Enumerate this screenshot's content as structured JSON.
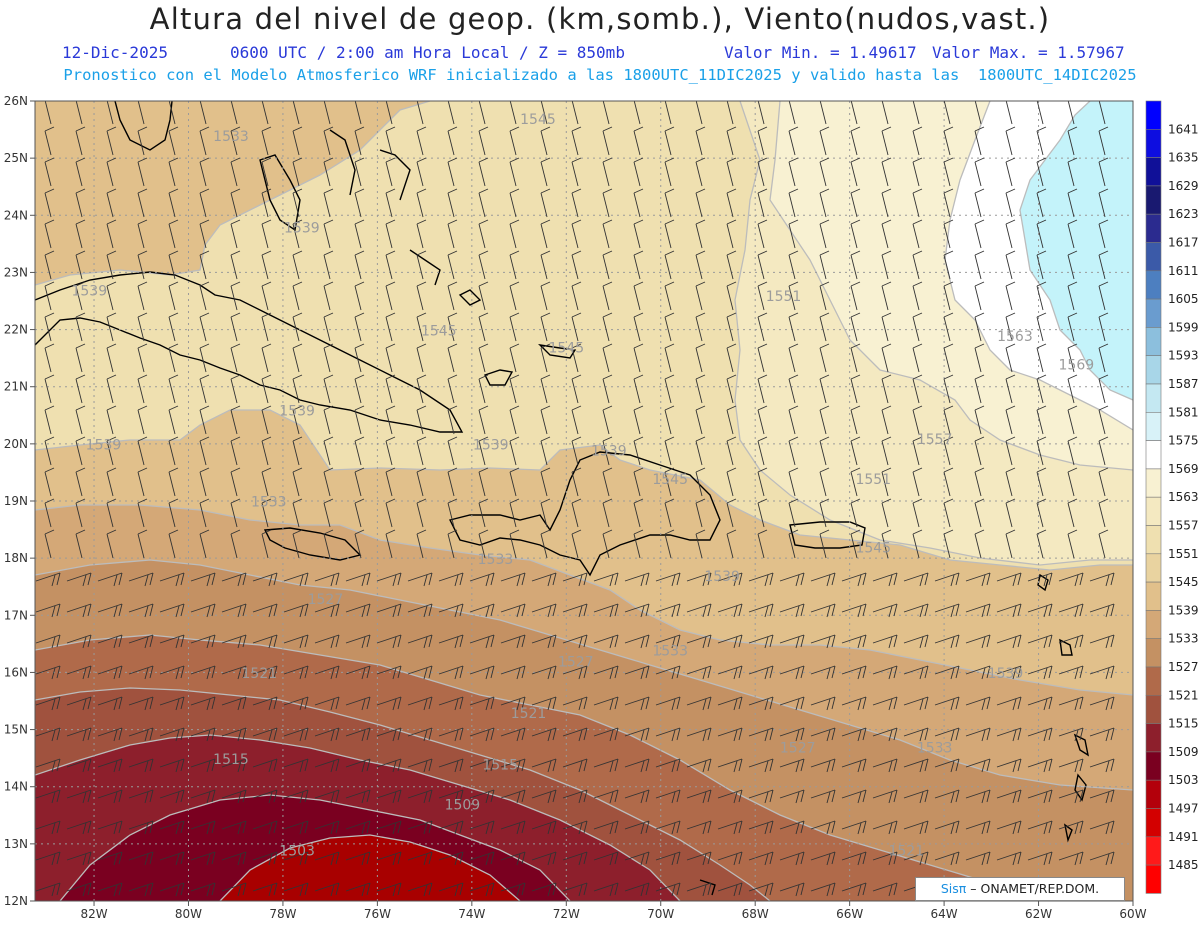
{
  "title": "Altura del nivel de geop. (km,somb.), Viento(nudos,vast.)",
  "subtitle": {
    "date": "12-Dic-2025",
    "time": "0600 UTC / 2:00 am Hora Local / Z = 850mb",
    "min": "Valor Min. = 1.49617",
    "max": "Valor Max. = 1.57967"
  },
  "description": "Pronostico con el Modelo Atmosferico WRF inicializado a las 1800UTC_11DIC2025 y valido hasta las  1800UTC_14DIC2025",
  "credit": {
    "brand": "Sisπ",
    "text": "– ONAMET/REP.DOM."
  },
  "map": {
    "lon_ticks": [
      "82W",
      "80W",
      "78W",
      "76W",
      "74W",
      "72W",
      "70W",
      "68W",
      "66W",
      "64W",
      "62W",
      "60W"
    ],
    "lat_ticks": [
      "26N",
      "25N",
      "24N",
      "23N",
      "22N",
      "21N",
      "20N",
      "19N",
      "18N",
      "17N",
      "16N",
      "15N",
      "14N",
      "13N",
      "12N"
    ],
    "lon_range": [
      -83.25,
      -60
    ],
    "lat_range": [
      12,
      26
    ]
  },
  "contour_labels": [
    {
      "text": "1545",
      "lon": -72.6,
      "lat": 25.6
    },
    {
      "text": "1533",
      "lon": -79.1,
      "lat": 25.3
    },
    {
      "text": "1539",
      "lon": -77.6,
      "lat": 23.7
    },
    {
      "text": "1539",
      "lon": -82.1,
      "lat": 22.6
    },
    {
      "text": "1545",
      "lon": -74.7,
      "lat": 21.9
    },
    {
      "text": "1545",
      "lon": -72.0,
      "lat": 21.6
    },
    {
      "text": "1551",
      "lon": -67.4,
      "lat": 22.5
    },
    {
      "text": "1563",
      "lon": -62.5,
      "lat": 21.8
    },
    {
      "text": "1569",
      "lon": -61.2,
      "lat": 21.3
    },
    {
      "text": "1539",
      "lon": -77.7,
      "lat": 20.5
    },
    {
      "text": "1539",
      "lon": -81.8,
      "lat": 19.9
    },
    {
      "text": "1539",
      "lon": -73.6,
      "lat": 19.9
    },
    {
      "text": "1539",
      "lon": -71.1,
      "lat": 19.8
    },
    {
      "text": "1545",
      "lon": -69.8,
      "lat": 19.3
    },
    {
      "text": "1557",
      "lon": -64.2,
      "lat": 20.0
    },
    {
      "text": "1551",
      "lon": -65.5,
      "lat": 19.3
    },
    {
      "text": "1533",
      "lon": -78.3,
      "lat": 18.9
    },
    {
      "text": "1533",
      "lon": -73.5,
      "lat": 17.9
    },
    {
      "text": "1539",
      "lon": -68.7,
      "lat": 17.6
    },
    {
      "text": "1545",
      "lon": -65.5,
      "lat": 18.1
    },
    {
      "text": "1527",
      "lon": -77.1,
      "lat": 17.2
    },
    {
      "text": "1527",
      "lon": -71.8,
      "lat": 16.1
    },
    {
      "text": "1533",
      "lon": -69.8,
      "lat": 16.3
    },
    {
      "text": "1539",
      "lon": -62.7,
      "lat": 15.9
    },
    {
      "text": "1521",
      "lon": -78.5,
      "lat": 15.9
    },
    {
      "text": "1521",
      "lon": -72.8,
      "lat": 15.2
    },
    {
      "text": "1533",
      "lon": -64.2,
      "lat": 14.6
    },
    {
      "text": "1527",
      "lon": -67.1,
      "lat": 14.6
    },
    {
      "text": "1515",
      "lon": -79.1,
      "lat": 14.4
    },
    {
      "text": "1515",
      "lon": -73.4,
      "lat": 14.3
    },
    {
      "text": "1509",
      "lon": -74.2,
      "lat": 13.6
    },
    {
      "text": "1503",
      "lon": -77.7,
      "lat": 12.8
    },
    {
      "text": "1521",
      "lon": -64.8,
      "lat": 12.8
    }
  ],
  "legend": {
    "levels": [
      "1641",
      "1635",
      "1629",
      "1623",
      "1617",
      "1611",
      "1605",
      "1599",
      "1593",
      "1587",
      "1581",
      "1575",
      "1569",
      "1563",
      "1557",
      "1551",
      "1545",
      "1539",
      "1533",
      "1527",
      "1521",
      "1515",
      "1509",
      "1503",
      "1497",
      "1491",
      "1485"
    ],
    "colors": [
      "#0000ff",
      "#0d0de0",
      "#101098",
      "#191970",
      "#2b2b8f",
      "#3b5aa8",
      "#4d7fc0",
      "#6a9ccf",
      "#8cbfdd",
      "#a8d6e8",
      "#c4e8f2",
      "#d8f2f8",
      "#ffffff",
      "#f8f1d2",
      "#f4e9c1",
      "#efe0b0",
      "#e9d3a0",
      "#e1c08b",
      "#d4a877",
      "#c49163",
      "#b06a4a",
      "#a0523e",
      "#8d1f2c",
      "#7a0020",
      "#b3000b",
      "#d30000",
      "#ff1a1a"
    ],
    "bottom_color": "#ff0000"
  },
  "colors": {
    "title": "#222222",
    "subtitle": "#2a39d8",
    "description": "#1aa0e8"
  }
}
